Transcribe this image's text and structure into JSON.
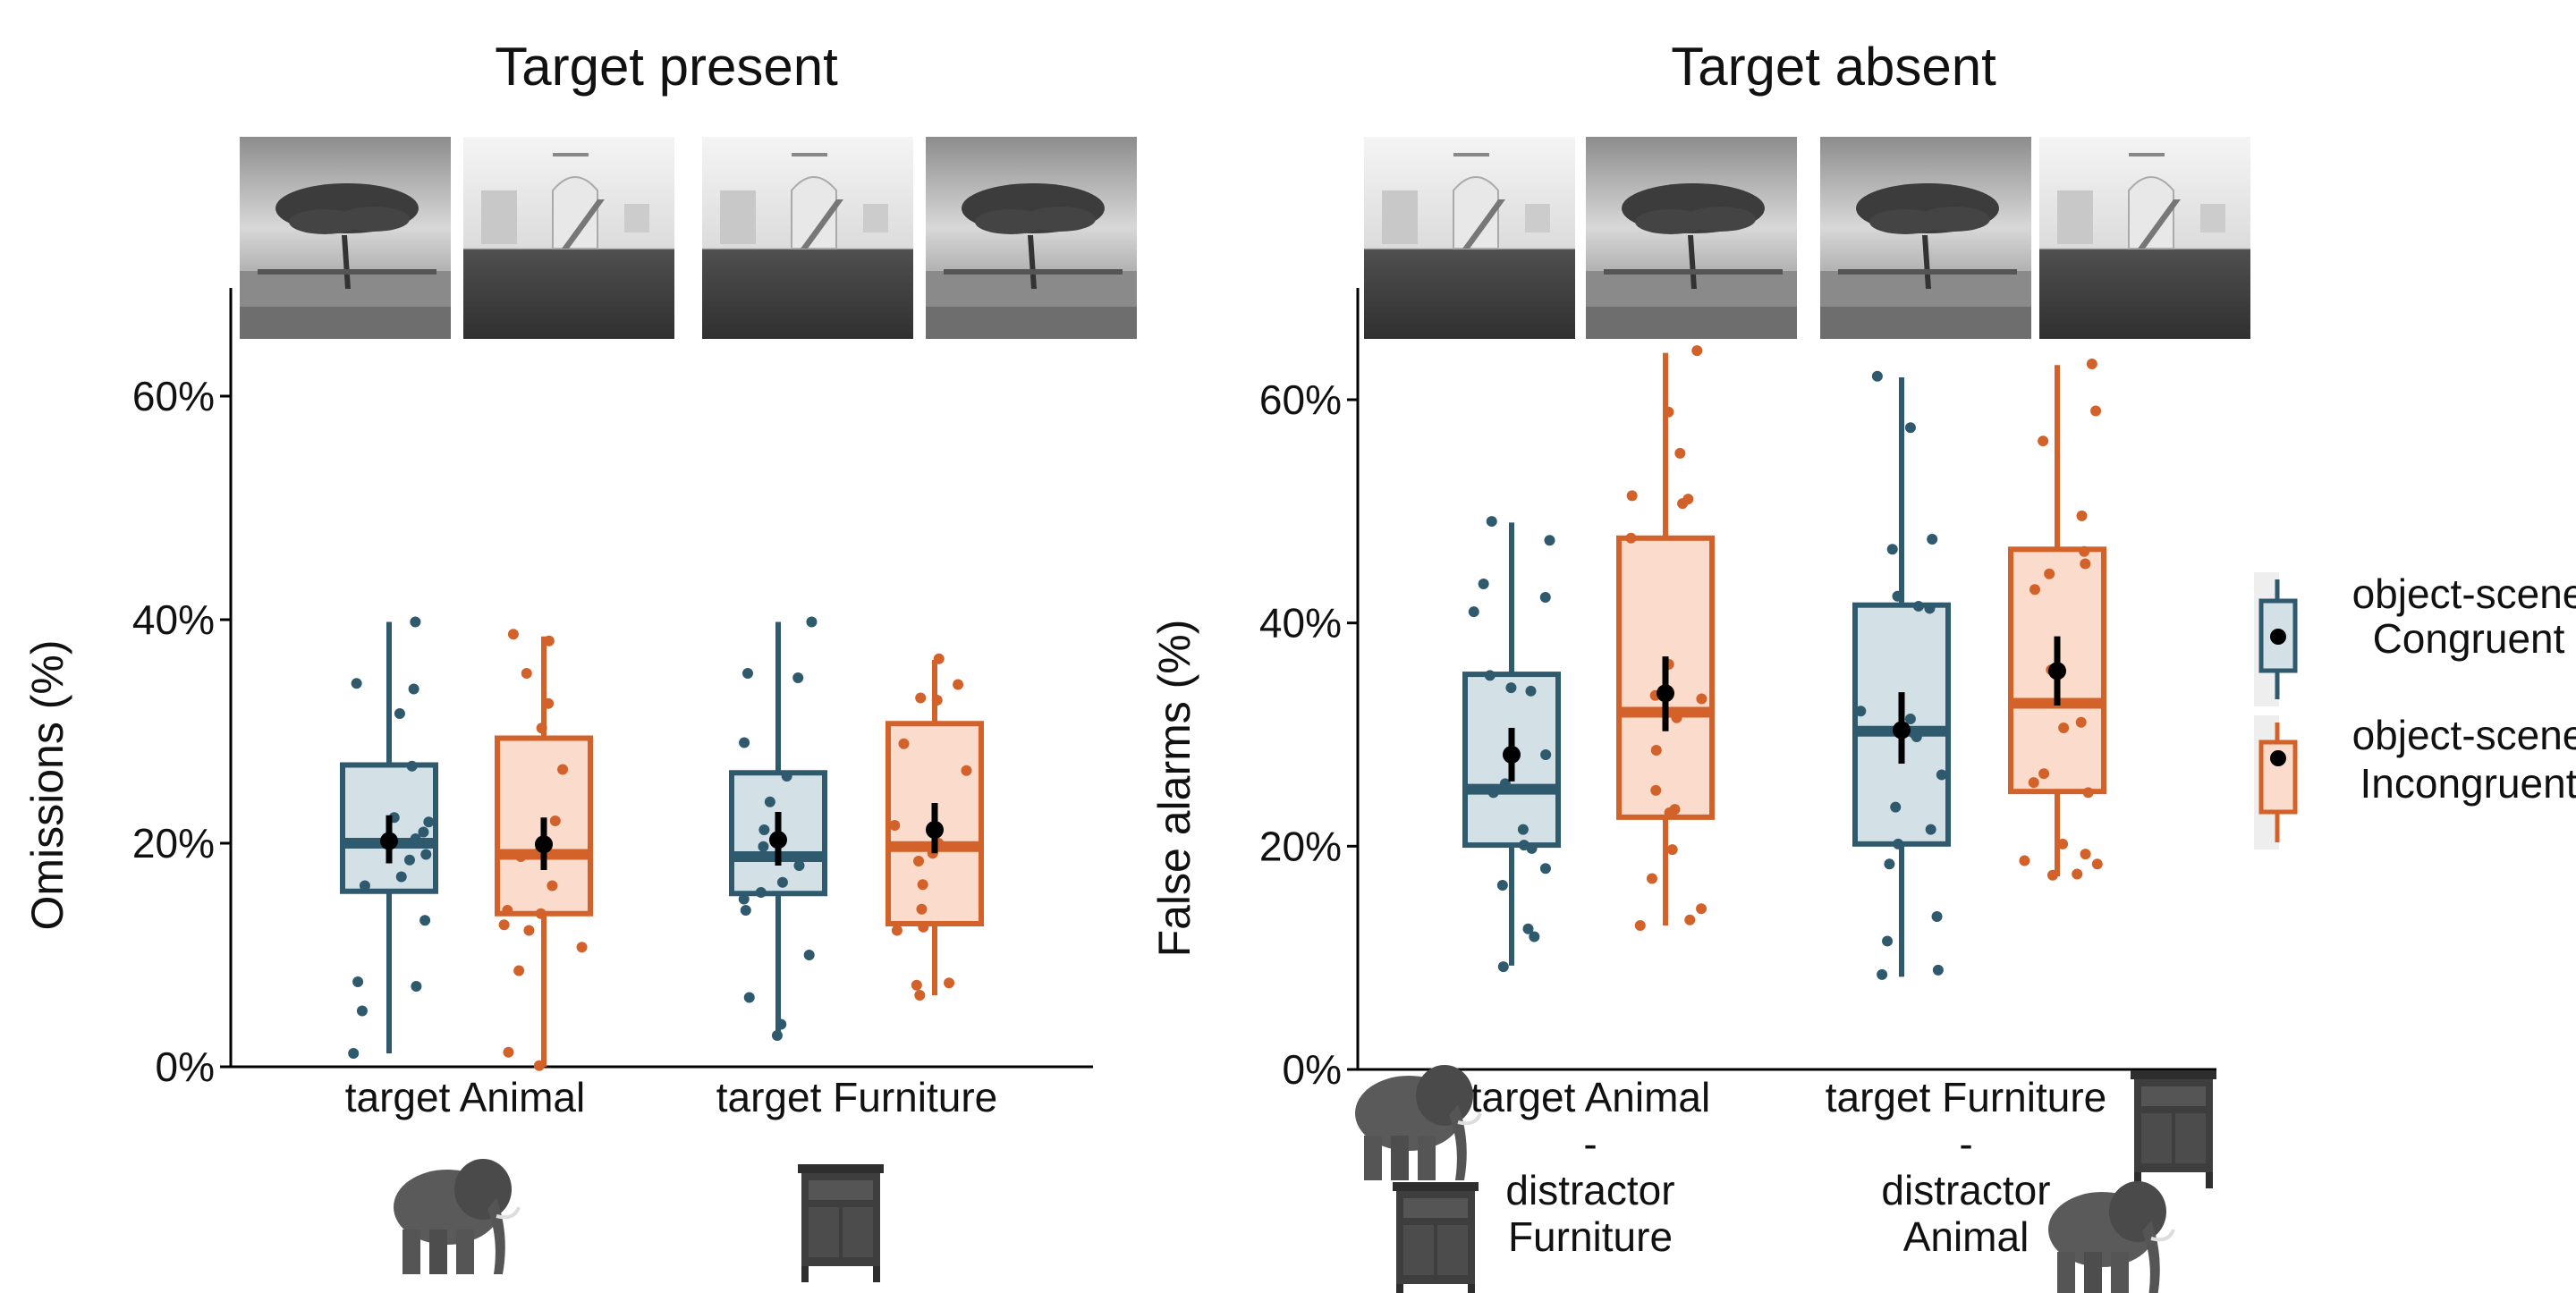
{
  "colors": {
    "congruent_line": "#2f5a6e",
    "congruent_fill": "#d3e0e6",
    "incongruent_line": "#d2622a",
    "incongruent_fill": "#fbdccc",
    "mean": "#000000",
    "axis": "#000000"
  },
  "legend": {
    "congruent": [
      "object-scene",
      "Congruent"
    ],
    "incongruent": [
      "object-scene",
      "Incongruent"
    ]
  },
  "chart_data": [
    {
      "type": "box",
      "title": "Target present",
      "ylabel": "Omissions (%)",
      "ylim": [
        0,
        70
      ],
      "yticks": [
        "0%",
        "20%",
        "40%",
        "60%"
      ],
      "yticks_values": [
        0,
        20,
        40,
        60
      ],
      "groups": [
        {
          "label": "target Animal",
          "label_lines": [
            "target Animal"
          ],
          "object_icon": "elephant-icon",
          "scene_thumbs": [
            "savanna-scene",
            "interior-scene"
          ],
          "boxes": [
            {
              "condition": "Congruent",
              "q1": 15.7,
              "median": 20.0,
              "q3": 27.0,
              "whisker_low": 1.2,
              "whisker_high": 39.8,
              "mean": 20.2,
              "ci": [
                18.2,
                22.5
              ],
              "points": [
                39.8,
                34.3,
                33.8,
                31.6,
                26.9,
                22.3,
                21.9,
                21.0,
                20.4,
                19.0,
                18.5,
                17.0,
                16.2,
                13.1,
                7.6,
                7.2,
                5.0,
                1.2
              ]
            },
            {
              "condition": "Incongruent",
              "q1": 13.7,
              "median": 19.0,
              "q3": 29.4,
              "whisker_low": 0,
              "whisker_high": 38.5,
              "mean": 19.9,
              "ci": [
                17.6,
                22.3
              ],
              "points": [
                38.7,
                38.1,
                35.2,
                32.5,
                30.3,
                26.6,
                22.0,
                19.3,
                18.8,
                16.2,
                14.0,
                13.7,
                12.7,
                12.2,
                10.7,
                8.6,
                1.3,
                0.1
              ]
            }
          ]
        },
        {
          "label": "target Furniture",
          "label_lines": [
            "target Furniture"
          ],
          "object_icon": "cabinet-icon",
          "scene_thumbs": [
            "interior-scene",
            "savanna-scene"
          ],
          "boxes": [
            {
              "condition": "Congruent",
              "q1": 15.5,
              "median": 18.8,
              "q3": 26.3,
              "whisker_low": 2.7,
              "whisker_high": 39.8,
              "mean": 20.3,
              "ci": [
                18.0,
                22.8
              ],
              "points": [
                39.8,
                35.2,
                34.8,
                29.0,
                26.0,
                23.7,
                21.2,
                19.7,
                18.0,
                16.5,
                15.6,
                15.0,
                14.0,
                10.0,
                6.2,
                3.8,
                2.8
              ]
            },
            {
              "condition": "Incongruent",
              "q1": 12.8,
              "median": 19.7,
              "q3": 30.7,
              "whisker_low": 6.4,
              "whisker_high": 36.4,
              "mean": 21.2,
              "ci": [
                19.1,
                23.6
              ],
              "points": [
                36.5,
                34.2,
                33.0,
                32.8,
                28.9,
                26.5,
                21.6,
                20.0,
                19.1,
                18.4,
                16.3,
                14.1,
                12.5,
                12.2,
                7.5,
                7.3,
                6.4
              ]
            }
          ]
        }
      ]
    },
    {
      "type": "box",
      "title": "Target absent",
      "ylabel": "False alarms (%)",
      "ylim": [
        0,
        70
      ],
      "yticks": [
        "0%",
        "20%",
        "40%",
        "60%"
      ],
      "yticks_values": [
        0,
        20,
        40,
        60
      ],
      "groups": [
        {
          "label": "target Animal - distractor Furniture",
          "label_lines": [
            "target Animal",
            "-",
            "distractor",
            "Furniture"
          ],
          "object_icon": "elephant-icon",
          "object_icon_2": "cabinet-icon",
          "scene_thumbs": [
            "interior-scene",
            "savanna-scene"
          ],
          "boxes": [
            {
              "condition": "Congruent",
              "q1": 20.1,
              "median": 25.1,
              "q3": 35.4,
              "whisker_low": 9.3,
              "whisker_high": 49.0,
              "mean": 28.2,
              "ci": [
                25.8,
                30.6
              ],
              "points": [
                49.1,
                47.4,
                43.5,
                42.3,
                41.0,
                35.3,
                34.2,
                33.9,
                28.2,
                25.6,
                24.8,
                21.5,
                20.1,
                19.8,
                18.0,
                16.5,
                12.6,
                11.9,
                9.2
              ]
            },
            {
              "condition": "Incongruent",
              "q1": 22.6,
              "median": 32.0,
              "q3": 47.6,
              "whisker_low": 12.9,
              "whisker_high": 64.2,
              "mean": 33.7,
              "ci": [
                30.3,
                37.0
              ],
              "points": [
                64.4,
                58.9,
                55.2,
                51.4,
                51.1,
                50.7,
                47.6,
                36.3,
                33.5,
                33.2,
                31.5,
                28.6,
                25.0,
                23.3,
                23.0,
                19.7,
                17.1,
                14.4,
                13.4,
                12.9
              ]
            }
          ]
        },
        {
          "label": "target Furniture - distractor Animal",
          "label_lines": [
            "target Furniture",
            "-",
            "distractor",
            "Animal"
          ],
          "object_icon": "cabinet-icon",
          "object_icon_2": "elephant-icon",
          "scene_thumbs": [
            "savanna-scene",
            "interior-scene"
          ],
          "boxes": [
            {
              "condition": "Congruent",
              "q1": 20.2,
              "median": 30.3,
              "q3": 41.6,
              "whisker_low": 8.3,
              "whisker_high": 62.0,
              "mean": 30.4,
              "ci": [
                27.4,
                33.8
              ],
              "points": [
                62.1,
                57.5,
                47.5,
                46.6,
                42.4,
                41.5,
                41.3,
                32.1,
                31.4,
                30.1,
                29.8,
                26.4,
                23.5,
                21.5,
                20.2,
                18.4,
                13.7,
                11.5,
                8.9,
                8.5
              ]
            },
            {
              "condition": "Incongruent",
              "q1": 24.9,
              "median": 32.8,
              "q3": 46.6,
              "whisker_low": 17.3,
              "whisker_high": 63.1,
              "mean": 35.7,
              "ci": [
                32.6,
                38.8
              ],
              "points": [
                63.2,
                59.0,
                56.3,
                49.6,
                46.4,
                45.3,
                44.4,
                43.0,
                35.8,
                31.1,
                30.6,
                26.5,
                25.7,
                24.8,
                20.2,
                19.3,
                18.7,
                18.4,
                17.5,
                17.4
              ]
            }
          ]
        }
      ]
    }
  ]
}
